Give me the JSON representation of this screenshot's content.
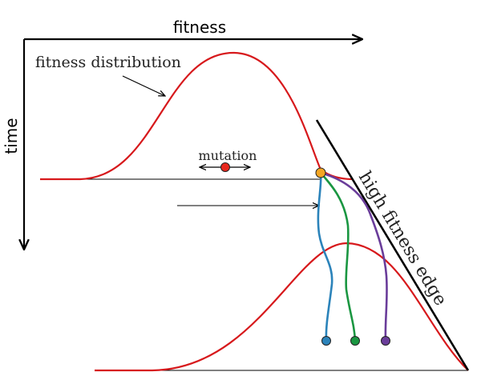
{
  "labels": {
    "x_axis": "fitness",
    "y_axis": "time",
    "distribution": "fitness distribution",
    "mutation": "mutation",
    "edge": "high fitness edge"
  },
  "colors": {
    "distribution": "#d7191c",
    "ancestor": "#f5a623",
    "mutation_dot": "#e8281e",
    "lineage_blue": "#2b83ba",
    "lineage_green": "#1a9641",
    "lineage_purple": "#6a3d9a",
    "ink": "#000000"
  }
}
